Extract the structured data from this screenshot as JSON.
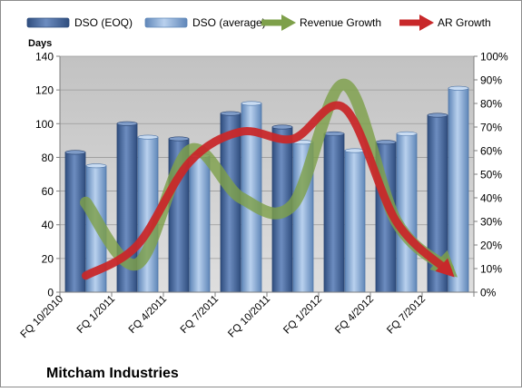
{
  "chart_data": {
    "type": "bar",
    "title": "Mitcham Industries",
    "ylabel": "Days",
    "ylim": [
      0,
      140
    ],
    "y2lim": [
      0,
      100
    ],
    "legend_position": "top",
    "grid": true,
    "categories": [
      "FQ 10/2010",
      "FQ 1/2011",
      "FQ 4/2011",
      "FQ 7/2011",
      "FQ 10/2011",
      "FQ 1/2012",
      "FQ 4/2012",
      "FQ 7/2012"
    ],
    "y_ticks": [
      "0",
      "20",
      "40",
      "60",
      "80",
      "100",
      "120",
      "140"
    ],
    "y2_ticks": [
      "0%",
      "10%",
      "20%",
      "30%",
      "40%",
      "50%",
      "60%",
      "70%",
      "80%",
      "90%",
      "100%"
    ],
    "series": [
      {
        "name": "DSO (EOQ)",
        "kind": "bar",
        "axis": "left",
        "color": "#4f6fa0",
        "values": [
          83,
          100,
          91,
          106,
          98,
          94,
          89,
          105
        ]
      },
      {
        "name": "DSO (average)",
        "kind": "bar",
        "axis": "left",
        "color": "#8fb1d8",
        "values": [
          75,
          92,
          81,
          112,
          89,
          84,
          94,
          121
        ]
      },
      {
        "name": "Revenue Growth",
        "kind": "line",
        "axis": "right",
        "unit": "%",
        "color": "#7ea04a",
        "values": [
          38,
          12,
          60,
          40,
          37,
          88,
          30,
          10
        ]
      },
      {
        "name": "AR Growth",
        "kind": "line",
        "axis": "right",
        "unit": "%",
        "color": "#c8282a",
        "values": [
          7,
          20,
          55,
          68,
          65,
          78,
          30,
          9
        ]
      }
    ]
  }
}
